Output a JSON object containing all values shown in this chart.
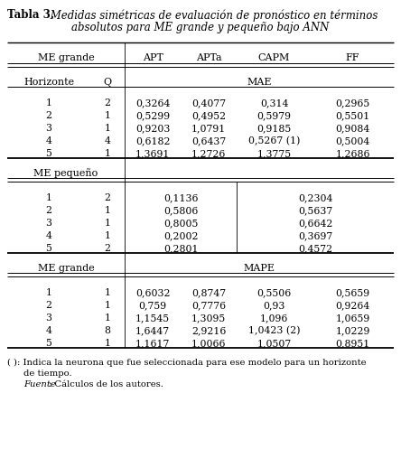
{
  "title_bold": "Tabla 3.",
  "title_italic": " Medidas simétricas de evaluación de pronóstico en términos",
  "title_italic2": "absolutos para ME grande y pequeño bajo ANN",
  "col_headers_left": "ME grande",
  "col_headers_right": [
    "APT",
    "APTa",
    "CAPM",
    "FF"
  ],
  "subheader_left": [
    "Horizonte",
    "Q"
  ],
  "subheader_right": "MAE",
  "mae_grande_rows": [
    [
      "1",
      "2",
      "0,3264",
      "0,4077",
      "0,314",
      "0,2965"
    ],
    [
      "2",
      "1",
      "0,5299",
      "0,4952",
      "0,5979",
      "0,5501"
    ],
    [
      "3",
      "1",
      "0,9203",
      "1,0791",
      "0,9185",
      "0,9084"
    ],
    [
      "4",
      "4",
      "0,6182",
      "0,6437",
      "0,5267 (1)",
      "0,5004"
    ],
    [
      "5",
      "1",
      "1,3691",
      "1,2726",
      "1,3775",
      "1,2686"
    ]
  ],
  "me_pequeno_header": "ME pequeño",
  "mae_pequeno_rows": [
    [
      "1",
      "2",
      "0,1136",
      "0,2304"
    ],
    [
      "2",
      "1",
      "0,5806",
      "0,5637"
    ],
    [
      "3",
      "1",
      "0,8005",
      "0,6642"
    ],
    [
      "4",
      "1",
      "0,2002",
      "0,3697"
    ],
    [
      "5",
      "2",
      "0,2801",
      "0,4572"
    ]
  ],
  "me_grande2_header": "ME grande",
  "mape_label": "MAPE",
  "mape_rows": [
    [
      "1",
      "1",
      "0,6032",
      "0,8747",
      "0,5506",
      "0,5659"
    ],
    [
      "2",
      "1",
      "0,759",
      "0,7776",
      "0,93",
      "0,9264"
    ],
    [
      "3",
      "1",
      "1,1545",
      "1,3095",
      "1,096",
      "1,0659"
    ],
    [
      "4",
      "8",
      "1,6447",
      "2,9216",
      "1,0423 (2)",
      "1,0229"
    ],
    [
      "5",
      "1",
      "1,1617",
      "1,0066",
      "1,0507",
      "0,8951"
    ]
  ],
  "footnote1": "( ): Indica la neurona que fue seleccionada para ese modelo para un horizonte",
  "footnote1b": "de tiempo.",
  "footnote2_italic": "Fuente",
  "footnote2_rest": ": Cálculos de los autores.",
  "bg_color": "#ffffff",
  "text_color": "#000000",
  "line_color": "#000000"
}
